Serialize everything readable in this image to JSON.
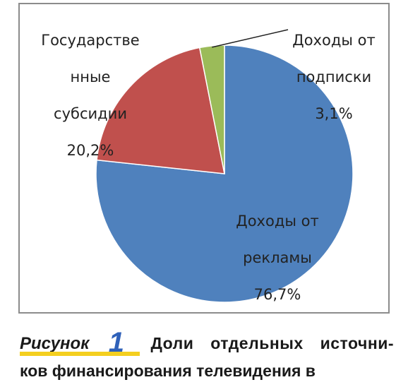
{
  "chart_data": {
    "type": "pie",
    "slices": [
      {
        "label_lines": [
          "Доходы от",
          "рекламы",
          "76,7%"
        ],
        "value": 76.7,
        "color": "#4f81bd"
      },
      {
        "label_lines": [
          "Государстве",
          "нные",
          "субсидии",
          "20,2%"
        ],
        "value": 20.2,
        "color": "#c0504d"
      },
      {
        "label_lines": [
          "Доходы от",
          "подписки",
          "3,1%"
        ],
        "value": 3.1,
        "color": "#9bbb59"
      }
    ],
    "title": "",
    "legend": "none"
  },
  "caption": {
    "figure_word": "Рисунок",
    "figure_number": "1",
    "line1": "Доли отдельных источни-",
    "line2": "ков финансирования телевидения в"
  }
}
